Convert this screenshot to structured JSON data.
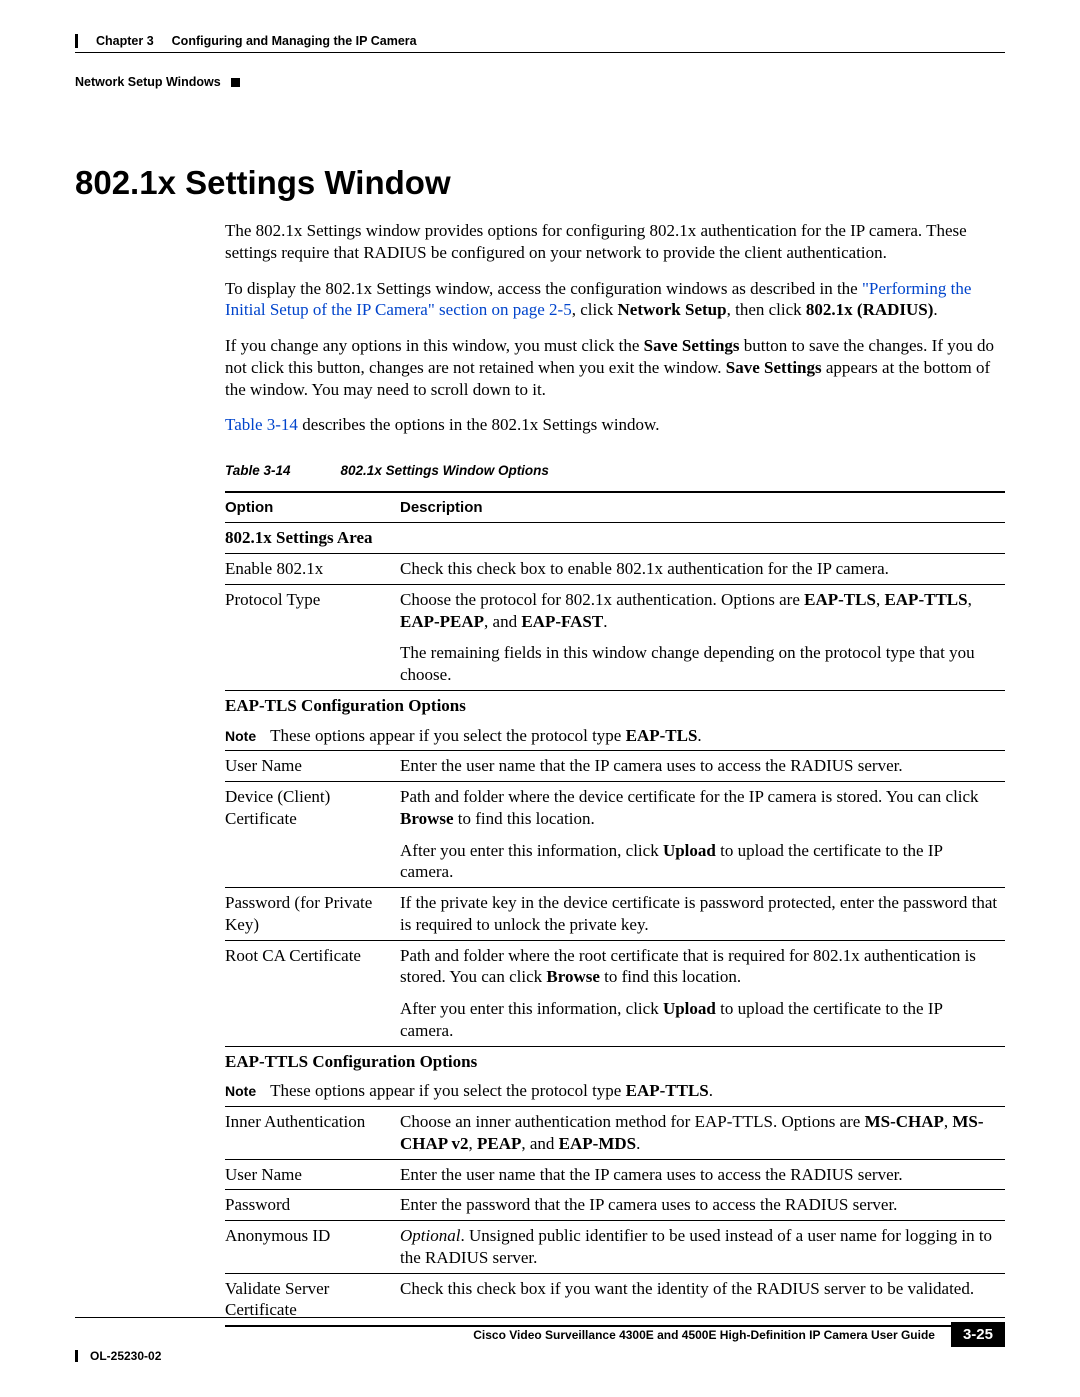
{
  "header": {
    "chapter_label": "Chapter 3",
    "chapter_title": "Configuring and Managing the IP Camera",
    "breadcrumb": "Network Setup Windows"
  },
  "title": "802.1x Settings Window",
  "paragraphs": {
    "p1": "The 802.1x Settings window provides options for configuring 802.1x authentication for the IP camera. These settings require that RADIUS be configured on your network to provide the client authentication.",
    "p2_a": "To display the 802.1x Settings window, access the configuration windows as described in the ",
    "p2_link": "\"Performing the Initial Setup of the IP Camera\" section on page 2-5",
    "p2_b": ", click ",
    "p2_bold1": "Network Setup",
    "p2_c": ", then click ",
    "p2_bold2": "802.1x (RADIUS)",
    "p2_d": ".",
    "p3_a": "If you change any options in this window, you must click the ",
    "p3_bold1": "Save Settings",
    "p3_b": " button to save the changes. If you do not click this button, changes are not retained when you exit the window. ",
    "p3_bold2": "Save Settings",
    "p3_c": " appears at the bottom of the window. You may need to scroll down to it.",
    "p4_link": "Table 3-14",
    "p4_b": " describes the options in the 802.1x Settings window."
  },
  "table": {
    "caption_label": "Table 3-14",
    "caption_title": "802.1x Settings Window Options",
    "head_option": "Option",
    "head_description": "Description",
    "area1": "802.1x Settings Area",
    "r_enable_opt": "Enable 802.1x",
    "r_enable_desc": "Check this check box to enable 802.1x authentication for the IP camera.",
    "r_proto_opt": "Protocol Type",
    "r_proto_desc_a": "Choose the protocol for 802.1x authentication. Options are ",
    "r_proto_bold1": "EAP-TLS",
    "r_proto_sep1": ", ",
    "r_proto_bold2": "EAP-TTLS",
    "r_proto_sep2": ", ",
    "r_proto_bold3": "EAP-PEAP",
    "r_proto_sep3": ", and ",
    "r_proto_bold4": "EAP-FAST",
    "r_proto_desc_b": ".",
    "r_proto_p2": "The remaining fields in this window change depending on the protocol type that you choose.",
    "area2": "EAP-TLS Configuration Options",
    "note_label": "Note",
    "note1_a": "These options appear if you select the protocol type ",
    "note1_bold": "EAP-TLS",
    "note1_b": ".",
    "r_user_opt": "User Name",
    "r_user_desc": "Enter the user name that the IP camera uses to access the RADIUS server.",
    "r_devcert_opt": "Device (Client) Certificate",
    "r_devcert_p1_a": "Path and folder where the device certificate for the IP camera is stored. You can click ",
    "r_devcert_p1_bold": "Browse",
    "r_devcert_p1_b": " to find this location.",
    "r_devcert_p2_a": "After you enter this information, click ",
    "r_devcert_p2_bold": "Upload",
    "r_devcert_p2_b": " to upload the certificate to the IP camera.",
    "r_pass_opt": "Password (for Private Key)",
    "r_pass_desc": "If the private key in the device certificate is password protected, enter the password that is required to unlock the private key.",
    "r_root_opt": "Root CA Certificate",
    "r_root_p1_a": "Path and folder where the root certificate that is required for 802.1x authentication is stored. You can click ",
    "r_root_p1_bold": "Browse",
    "r_root_p1_b": " to find this location.",
    "r_root_p2_a": "After you enter this information, click ",
    "r_root_p2_bold": "Upload",
    "r_root_p2_b": " to upload the certificate to the IP camera.",
    "area3": "EAP-TTLS Configuration Options",
    "note2_a": "These options appear if you select the protocol type ",
    "note2_bold": "EAP-TTLS",
    "note2_b": ".",
    "r_inner_opt": "Inner Authentication",
    "r_inner_a": "Choose an inner authentication method for EAP-TTLS. Options are ",
    "r_inner_bold1": "MS-CHAP",
    "r_inner_sep1": ", ",
    "r_inner_bold2": "MS-CHAP v2",
    "r_inner_sep2": ", ",
    "r_inner_bold3": "PEAP",
    "r_inner_sep3": ", and ",
    "r_inner_bold4": "EAP-MDS",
    "r_inner_b": ".",
    "r_user2_desc": "Enter the user name that the IP camera uses to access the RADIUS server.",
    "r_pw_opt": "Password",
    "r_pw_desc": "Enter the password that the IP camera uses to access the RADIUS server.",
    "r_anon_opt": "Anonymous ID",
    "r_anon_it": "Optional",
    "r_anon_desc": ". Unsigned public identifier to be used instead of a user name for logging in to the RADIUS server.",
    "r_val_opt": "Validate Server Certificate",
    "r_val_desc": "Check this check box if you want the identity of the RADIUS server to be validated."
  },
  "footer": {
    "book_title": "Cisco Video Surveillance 4300E and 4500E High-Definition IP Camera User Guide",
    "doc_number": "OL-25230-02",
    "page_number": "3-25"
  }
}
